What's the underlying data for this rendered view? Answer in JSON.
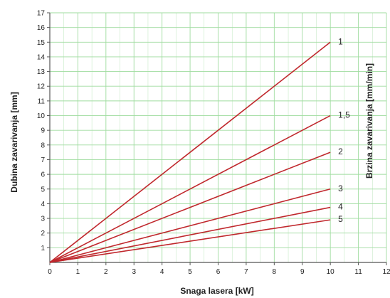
{
  "chart_data": {
    "type": "line",
    "xlabel": "Snaga lasera [kW]",
    "ylabel": "Dubina zavarivanja [mm]",
    "y2label": "Brzina zavarivanja [mm/min]",
    "xlim": [
      0,
      12
    ],
    "ylim": [
      0,
      17
    ],
    "xticks": [
      "0",
      "1",
      "2",
      "3",
      "4",
      "5",
      "6",
      "7",
      "8",
      "9",
      "10",
      "11",
      "12"
    ],
    "yticks": [
      "1",
      "2",
      "3",
      "4",
      "5",
      "6",
      "7",
      "8",
      "9",
      "10",
      "11",
      "12",
      "13",
      "14",
      "15",
      "16",
      "17"
    ],
    "grid": true,
    "colors": {
      "line": "#c0282d",
      "grid": "#9fdc9f",
      "axis": "#555555"
    },
    "series": [
      {
        "name": "1",
        "x": [
          0,
          10
        ],
        "y": [
          0,
          15
        ]
      },
      {
        "name": "1,5",
        "x": [
          0,
          10
        ],
        "y": [
          0,
          10
        ]
      },
      {
        "name": "2",
        "x": [
          0,
          10
        ],
        "y": [
          0,
          7.5
        ]
      },
      {
        "name": "3",
        "x": [
          0,
          10
        ],
        "y": [
          0,
          5
        ]
      },
      {
        "name": "4",
        "x": [
          0,
          10
        ],
        "y": [
          0,
          3.75
        ]
      },
      {
        "name": "5",
        "x": [
          0,
          10
        ],
        "y": [
          0,
          2.9
        ]
      }
    ]
  }
}
